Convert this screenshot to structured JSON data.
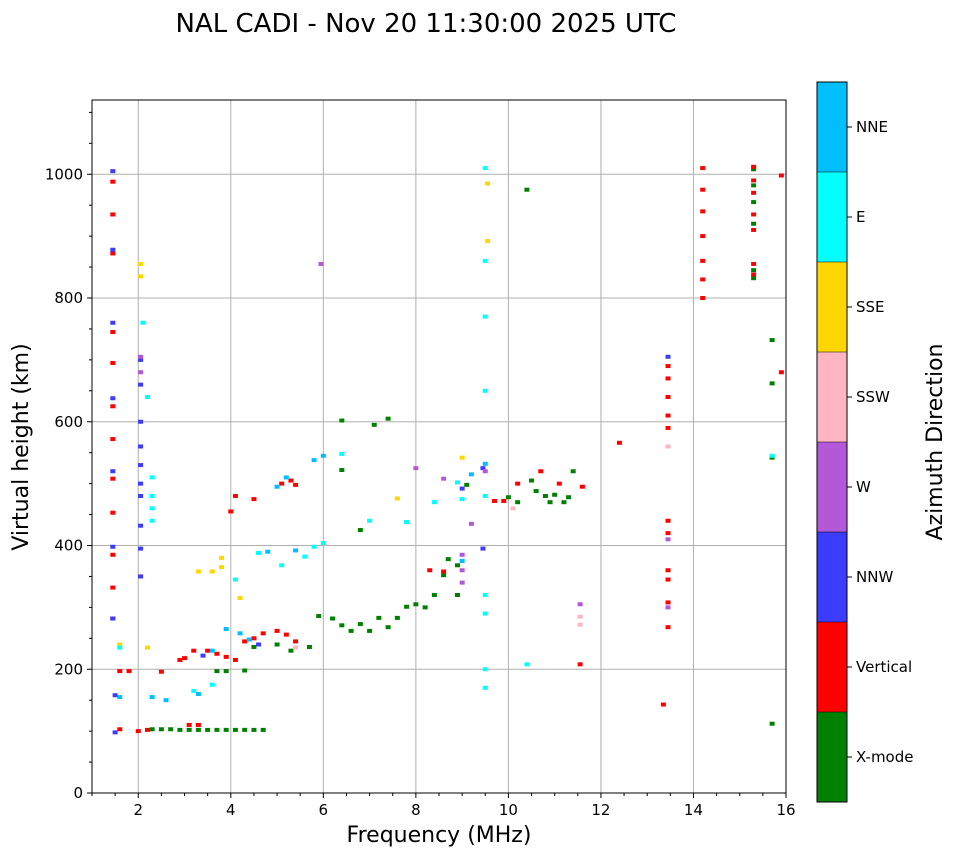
{
  "chart_data": {
    "type": "scatter",
    "title": "NAL CADI - Nov 20 11:30:00 2025 UTC",
    "xlabel": "Frequency (MHz)",
    "ylabel": "Virtual height (km)",
    "xlim": [
      1,
      16
    ],
    "ylim": [
      0,
      1120
    ],
    "xticks": [
      2,
      4,
      6,
      8,
      10,
      12,
      14,
      16
    ],
    "yticks": [
      0,
      200,
      400,
      600,
      800,
      1000
    ],
    "grid": true,
    "colorbar": {
      "label": "Azimuth Direction",
      "categories": [
        "X-mode",
        "Vertical",
        "NNW",
        "W",
        "SSW",
        "SSE",
        "E",
        "NNE"
      ],
      "colors": [
        "#008000",
        "#ff0000",
        "#3c3cff",
        "#b358d6",
        "#ffb6c1",
        "#ffd700",
        "#00ffff",
        "#00bfff"
      ]
    },
    "series": [
      {
        "name": "X-mode",
        "points": [
          [
            2.3,
            103
          ],
          [
            2.5,
            103
          ],
          [
            2.7,
            103
          ],
          [
            2.9,
            102
          ],
          [
            3.1,
            102
          ],
          [
            3.3,
            102
          ],
          [
            3.5,
            102
          ],
          [
            3.7,
            102
          ],
          [
            3.9,
            102
          ],
          [
            4.1,
            102
          ],
          [
            4.3,
            102
          ],
          [
            4.5,
            102
          ],
          [
            4.7,
            102
          ],
          [
            3.7,
            197
          ],
          [
            3.9,
            197
          ],
          [
            4.3,
            198
          ],
          [
            4.5,
            236
          ],
          [
            5.0,
            240
          ],
          [
            5.3,
            230
          ],
          [
            5.7,
            236
          ],
          [
            5.9,
            286
          ],
          [
            6.2,
            282
          ],
          [
            6.4,
            271
          ],
          [
            6.6,
            262
          ],
          [
            6.8,
            273
          ],
          [
            7.0,
            262
          ],
          [
            7.2,
            283
          ],
          [
            7.4,
            268
          ],
          [
            7.6,
            283
          ],
          [
            7.8,
            301
          ],
          [
            8.0,
            305
          ],
          [
            8.2,
            300
          ],
          [
            8.4,
            320
          ],
          [
            8.6,
            352
          ],
          [
            8.7,
            378
          ],
          [
            8.9,
            368
          ],
          [
            8.9,
            320
          ],
          [
            9.1,
            498
          ],
          [
            10.0,
            478
          ],
          [
            10.2,
            470
          ],
          [
            10.5,
            505
          ],
          [
            10.6,
            488
          ],
          [
            10.8,
            480
          ],
          [
            10.9,
            470
          ],
          [
            11.0,
            482
          ],
          [
            11.2,
            470
          ],
          [
            11.3,
            478
          ],
          [
            11.4,
            520
          ],
          [
            15.3,
            1008
          ],
          [
            15.3,
            982
          ],
          [
            15.3,
            955
          ],
          [
            15.3,
            920
          ],
          [
            15.3,
            845
          ],
          [
            15.3,
            832
          ],
          [
            15.7,
            732
          ],
          [
            15.7,
            662
          ],
          [
            15.7,
            542
          ],
          [
            15.7,
            112
          ],
          [
            6.8,
            425
          ],
          [
            7.4,
            605
          ],
          [
            7.1,
            595
          ],
          [
            6.4,
            602
          ],
          [
            10.4,
            975
          ],
          [
            6.4,
            522
          ]
        ]
      },
      {
        "name": "Vertical",
        "points": [
          [
            1.45,
            988
          ],
          [
            1.45,
            935
          ],
          [
            1.45,
            872
          ],
          [
            1.45,
            745
          ],
          [
            1.45,
            695
          ],
          [
            1.45,
            625
          ],
          [
            1.45,
            572
          ],
          [
            1.45,
            508
          ],
          [
            1.45,
            453
          ],
          [
            1.45,
            385
          ],
          [
            1.45,
            332
          ],
          [
            1.45,
            282
          ],
          [
            1.6,
            197
          ],
          [
            1.8,
            197
          ],
          [
            1.6,
            103
          ],
          [
            2.0,
            100
          ],
          [
            2.2,
            102
          ],
          [
            2.5,
            196
          ],
          [
            3.1,
            110
          ],
          [
            3.3,
            110
          ],
          [
            3.5,
            230
          ],
          [
            3.7,
            225
          ],
          [
            3.9,
            220
          ],
          [
            4.1,
            215
          ],
          [
            3.2,
            230
          ],
          [
            3.0,
            218
          ],
          [
            2.9,
            215
          ],
          [
            4.3,
            245
          ],
          [
            4.5,
            250
          ],
          [
            4.7,
            258
          ],
          [
            5.0,
            262
          ],
          [
            5.2,
            256
          ],
          [
            5.4,
            245
          ],
          [
            4.0,
            455
          ],
          [
            4.1,
            480
          ],
          [
            4.5,
            475
          ],
          [
            5.1,
            500
          ],
          [
            5.3,
            505
          ],
          [
            5.4,
            498
          ],
          [
            8.3,
            360
          ],
          [
            8.6,
            358
          ],
          [
            9.7,
            472
          ],
          [
            9.9,
            472
          ],
          [
            10.2,
            500
          ],
          [
            10.7,
            520
          ],
          [
            11.1,
            500
          ],
          [
            11.6,
            495
          ],
          [
            12.4,
            566
          ],
          [
            13.45,
            690
          ],
          [
            13.45,
            670
          ],
          [
            13.45,
            640
          ],
          [
            13.45,
            610
          ],
          [
            13.45,
            590
          ],
          [
            13.45,
            440
          ],
          [
            13.45,
            420
          ],
          [
            13.45,
            360
          ],
          [
            13.45,
            345
          ],
          [
            13.45,
            308
          ],
          [
            13.45,
            268
          ],
          [
            13.35,
            143
          ],
          [
            11.55,
            208
          ],
          [
            14.2,
            1010
          ],
          [
            14.2,
            975
          ],
          [
            14.2,
            940
          ],
          [
            14.2,
            900
          ],
          [
            14.2,
            860
          ],
          [
            14.2,
            830
          ],
          [
            14.2,
            800
          ],
          [
            15.3,
            1012
          ],
          [
            15.3,
            990
          ],
          [
            15.3,
            970
          ],
          [
            15.3,
            935
          ],
          [
            15.3,
            910
          ],
          [
            15.3,
            855
          ],
          [
            15.3,
            838
          ],
          [
            15.9,
            998
          ],
          [
            15.9,
            680
          ]
        ]
      },
      {
        "name": "NNW",
        "points": [
          [
            1.45,
            1005
          ],
          [
            1.45,
            878
          ],
          [
            1.45,
            760
          ],
          [
            1.45,
            638
          ],
          [
            1.45,
            520
          ],
          [
            1.45,
            398
          ],
          [
            1.45,
            282
          ],
          [
            1.5,
            158
          ],
          [
            1.5,
            98
          ],
          [
            2.05,
            700
          ],
          [
            2.05,
            660
          ],
          [
            2.05,
            600
          ],
          [
            2.05,
            560
          ],
          [
            2.05,
            530
          ],
          [
            2.05,
            500
          ],
          [
            2.05,
            480
          ],
          [
            2.05,
            432
          ],
          [
            2.05,
            395
          ],
          [
            2.05,
            350
          ],
          [
            3.4,
            222
          ],
          [
            4.6,
            240
          ],
          [
            9.45,
            525
          ],
          [
            9.45,
            395
          ],
          [
            9.0,
            492
          ],
          [
            13.45,
            705
          ]
        ]
      },
      {
        "name": "W",
        "points": [
          [
            2.05,
            705
          ],
          [
            2.05,
            680
          ],
          [
            5.95,
            855
          ],
          [
            9.0,
            385
          ],
          [
            9.0,
            360
          ],
          [
            9.0,
            340
          ],
          [
            9.2,
            435
          ],
          [
            8.6,
            508
          ],
          [
            11.55,
            305
          ],
          [
            13.45,
            410
          ],
          [
            13.45,
            300
          ],
          [
            8.0,
            525
          ],
          [
            9.5,
            520
          ]
        ]
      },
      {
        "name": "SSW",
        "points": [
          [
            11.55,
            285
          ],
          [
            11.55,
            272
          ],
          [
            13.45,
            560
          ],
          [
            10.1,
            460
          ],
          [
            5.4,
            235
          ]
        ]
      },
      {
        "name": "SSE",
        "points": [
          [
            2.05,
            855
          ],
          [
            2.05,
            835
          ],
          [
            3.3,
            358
          ],
          [
            3.6,
            358
          ],
          [
            3.8,
            365
          ],
          [
            3.8,
            380
          ],
          [
            1.6,
            240
          ],
          [
            4.2,
            315
          ],
          [
            7.6,
            476
          ],
          [
            9.0,
            542
          ],
          [
            9.55,
            892
          ],
          [
            9.55,
            985
          ],
          [
            2.2,
            235
          ]
        ]
      },
      {
        "name": "E",
        "points": [
          [
            2.3,
            510
          ],
          [
            2.3,
            480
          ],
          [
            2.3,
            460
          ],
          [
            2.3,
            440
          ],
          [
            1.6,
            235
          ],
          [
            2.1,
            760
          ],
          [
            3.2,
            165
          ],
          [
            3.6,
            175
          ],
          [
            4.1,
            345
          ],
          [
            4.6,
            388
          ],
          [
            5.1,
            368
          ],
          [
            5.6,
            382
          ],
          [
            5.8,
            398
          ],
          [
            6.0,
            404
          ],
          [
            6.4,
            548
          ],
          [
            7.0,
            440
          ],
          [
            7.8,
            438
          ],
          [
            8.4,
            470
          ],
          [
            8.9,
            502
          ],
          [
            9.5,
            1010
          ],
          [
            9.5,
            860
          ],
          [
            9.5,
            770
          ],
          [
            9.5,
            650
          ],
          [
            9.5,
            320
          ],
          [
            9.5,
            290
          ],
          [
            9.5,
            200
          ],
          [
            9.5,
            170
          ],
          [
            10.4,
            208
          ],
          [
            9.0,
            475
          ],
          [
            9.5,
            480
          ],
          [
            15.7,
            545
          ],
          [
            2.2,
            640
          ]
        ]
      },
      {
        "name": "NNE",
        "points": [
          [
            1.6,
            155
          ],
          [
            2.3,
            155
          ],
          [
            2.6,
            150
          ],
          [
            3.3,
            160
          ],
          [
            3.6,
            230
          ],
          [
            3.9,
            265
          ],
          [
            4.2,
            258
          ],
          [
            4.4,
            248
          ],
          [
            5.0,
            495
          ],
          [
            5.2,
            510
          ],
          [
            5.8,
            538
          ],
          [
            6.0,
            545
          ],
          [
            9.2,
            515
          ],
          [
            9.5,
            532
          ],
          [
            9.0,
            375
          ],
          [
            4.8,
            390
          ],
          [
            5.4,
            392
          ]
        ]
      }
    ]
  }
}
